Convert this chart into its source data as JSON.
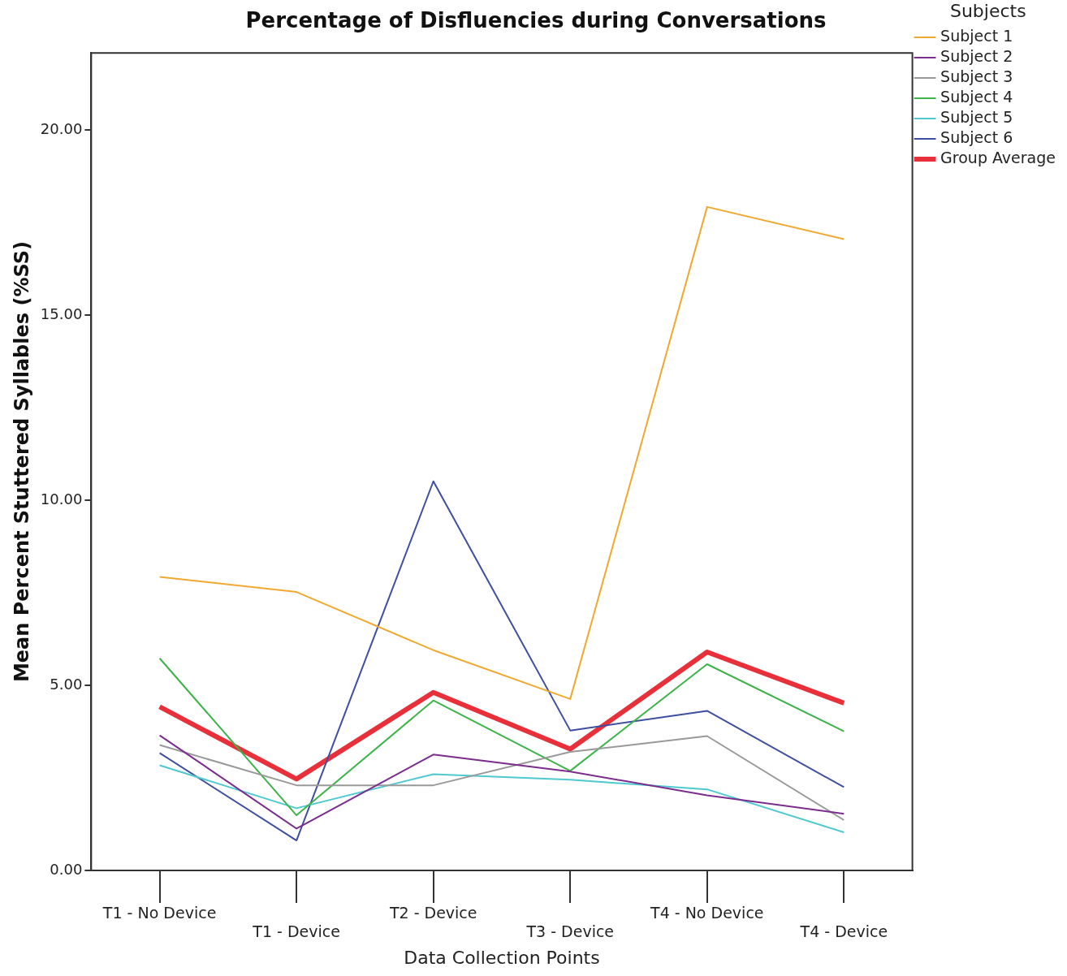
{
  "chart_data": {
    "type": "line",
    "title": "Percentage of Disfluencies during Conversations",
    "xlabel": "Data Collection Points",
    "ylabel": "Mean Percent Stuttered Syllables (%SS)",
    "legend_title": "Subjects",
    "legend": "right",
    "grid": false,
    "marker": "none",
    "line_style": "solid",
    "categories": [
      "T1 - No Device",
      "T1 - Device",
      "T2 - Device",
      "T3 - Device",
      "T4 - No Device",
      "T4 - Device"
    ],
    "ylim": [
      0,
      22.08
    ],
    "yticks": [
      {
        "value": 0,
        "label": "0.00"
      },
      {
        "value": 5,
        "label": "5.00"
      },
      {
        "value": 10,
        "label": "10.00"
      },
      {
        "value": 15,
        "label": "15.00"
      },
      {
        "value": 20,
        "label": "20.00"
      }
    ],
    "series": [
      {
        "name": "Subject 1",
        "color": "#f0a830",
        "values": [
          7.93,
          7.52,
          5.95,
          4.63,
          17.92,
          17.05
        ]
      },
      {
        "name": "Subject 2",
        "color": "#7b2d8e",
        "values": [
          3.65,
          1.13,
          3.13,
          2.67,
          2.03,
          1.53
        ]
      },
      {
        "name": "Subject 3",
        "color": "#999999",
        "values": [
          3.39,
          2.3,
          2.3,
          3.2,
          3.63,
          1.36
        ]
      },
      {
        "name": "Subject 4",
        "color": "#3db34a",
        "values": [
          5.73,
          1.49,
          4.59,
          2.69,
          5.57,
          3.76
        ]
      },
      {
        "name": "Subject 5",
        "color": "#4fc9d0",
        "values": [
          2.84,
          1.68,
          2.6,
          2.45,
          2.19,
          1.03
        ]
      },
      {
        "name": "Subject 6",
        "color": "#3f4fa0",
        "values": [
          3.17,
          0.81,
          10.51,
          3.78,
          4.31,
          2.25
        ]
      },
      {
        "name": "Group Average",
        "color": "#e8303a",
        "values": [
          4.42,
          2.47,
          4.81,
          3.28,
          5.9,
          4.52
        ]
      }
    ]
  }
}
